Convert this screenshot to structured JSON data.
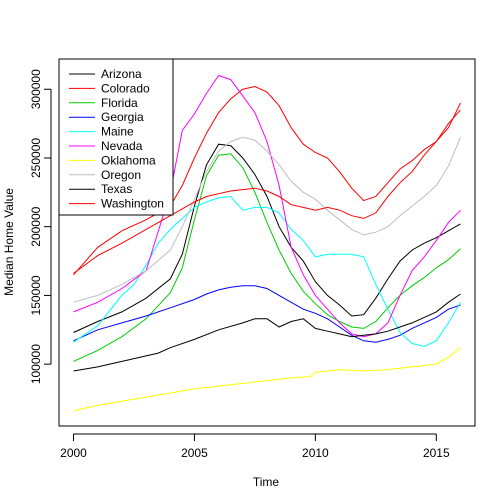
{
  "chart_data": {
    "type": "line",
    "title": "",
    "xlabel": "Time",
    "ylabel": "Median Home Value",
    "xlim": [
      1999.4,
      2016.6
    ],
    "ylim": [
      55000,
      322000
    ],
    "xticks": [
      2000,
      2005,
      2010,
      2015
    ],
    "yticks": [
      100000,
      150000,
      200000,
      250000,
      300000
    ],
    "grid": false,
    "legend_position": "top-left",
    "series": [
      {
        "name": "Arizona",
        "color": "#000000",
        "points": [
          [
            2000,
            123000
          ],
          [
            2001,
            131000
          ],
          [
            2002,
            138000
          ],
          [
            2003,
            148000
          ],
          [
            2004,
            162000
          ],
          [
            2004.5,
            180000
          ],
          [
            2005,
            215000
          ],
          [
            2005.5,
            245000
          ],
          [
            2006,
            260000
          ],
          [
            2006.5,
            259000
          ],
          [
            2007,
            250000
          ],
          [
            2007.5,
            238000
          ],
          [
            2008,
            222000
          ],
          [
            2008.5,
            200000
          ],
          [
            2009,
            185000
          ],
          [
            2009.5,
            175000
          ],
          [
            2010,
            160000
          ],
          [
            2010.5,
            150000
          ],
          [
            2011,
            143000
          ],
          [
            2011.5,
            135000
          ],
          [
            2012,
            136000
          ],
          [
            2012.5,
            148000
          ],
          [
            2013,
            162000
          ],
          [
            2013.5,
            175000
          ],
          [
            2014,
            183000
          ],
          [
            2014.5,
            188000
          ],
          [
            2015,
            192000
          ],
          [
            2015.5,
            197000
          ],
          [
            2016,
            202000
          ]
        ]
      },
      {
        "name": "Colorado",
        "color": "#ff0000",
        "points": [
          [
            2000,
            165000
          ],
          [
            2000.5,
            175000
          ],
          [
            2001,
            185000
          ],
          [
            2002,
            197000
          ],
          [
            2003,
            205000
          ],
          [
            2004,
            215000
          ],
          [
            2004.5,
            230000
          ],
          [
            2005,
            250000
          ],
          [
            2005.5,
            268000
          ],
          [
            2006,
            283000
          ],
          [
            2006.5,
            293000
          ],
          [
            2007,
            300000
          ],
          [
            2007.5,
            302000
          ],
          [
            2008,
            298000
          ],
          [
            2008.5,
            288000
          ],
          [
            2009,
            272000
          ],
          [
            2009.5,
            260000
          ],
          [
            2010,
            254000
          ],
          [
            2010.5,
            250000
          ],
          [
            2011,
            240000
          ],
          [
            2011.5,
            228000
          ],
          [
            2012,
            219000
          ],
          [
            2012.5,
            222000
          ],
          [
            2013,
            232000
          ],
          [
            2013.5,
            242000
          ],
          [
            2014,
            248000
          ],
          [
            2014.5,
            256000
          ],
          [
            2015,
            262000
          ],
          [
            2015.5,
            272000
          ],
          [
            2016,
            290000
          ]
        ]
      },
      {
        "name": "Florida",
        "color": "#00cd00",
        "points": [
          [
            2000,
            102000
          ],
          [
            2001,
            110000
          ],
          [
            2002,
            120000
          ],
          [
            2003,
            133000
          ],
          [
            2004,
            152000
          ],
          [
            2004.5,
            170000
          ],
          [
            2005,
            205000
          ],
          [
            2005.5,
            237000
          ],
          [
            2006,
            252000
          ],
          [
            2006.5,
            253000
          ],
          [
            2007,
            243000
          ],
          [
            2007.5,
            225000
          ],
          [
            2008,
            203000
          ],
          [
            2008.5,
            183000
          ],
          [
            2009,
            166000
          ],
          [
            2009.5,
            153000
          ],
          [
            2010,
            144000
          ],
          [
            2010.5,
            136000
          ],
          [
            2011,
            131000
          ],
          [
            2011.5,
            127000
          ],
          [
            2012,
            126000
          ],
          [
            2012.5,
            131000
          ],
          [
            2013,
            141000
          ],
          [
            2013.5,
            150000
          ],
          [
            2014,
            157000
          ],
          [
            2014.5,
            163000
          ],
          [
            2015,
            170000
          ],
          [
            2015.5,
            176000
          ],
          [
            2016,
            184000
          ]
        ]
      },
      {
        "name": "Georgia",
        "color": "#0000ff",
        "points": [
          [
            2000,
            117000
          ],
          [
            2001,
            125000
          ],
          [
            2002,
            130000
          ],
          [
            2003,
            135000
          ],
          [
            2004,
            141000
          ],
          [
            2005,
            147000
          ],
          [
            2005.5,
            151000
          ],
          [
            2006,
            154000
          ],
          [
            2006.5,
            156000
          ],
          [
            2007,
            157000
          ],
          [
            2007.5,
            157000
          ],
          [
            2008,
            155000
          ],
          [
            2008.5,
            150000
          ],
          [
            2009,
            145000
          ],
          [
            2009.5,
            140000
          ],
          [
            2010,
            137000
          ],
          [
            2010.5,
            133000
          ],
          [
            2011,
            127000
          ],
          [
            2011.5,
            121000
          ],
          [
            2012,
            117000
          ],
          [
            2012.5,
            116000
          ],
          [
            2013,
            118000
          ],
          [
            2013.5,
            121000
          ],
          [
            2014,
            126000
          ],
          [
            2014.5,
            130000
          ],
          [
            2015,
            134000
          ],
          [
            2015.5,
            140000
          ],
          [
            2016,
            143000
          ]
        ]
      },
      {
        "name": "Maine",
        "color": "#00ffff",
        "points": [
          [
            2000,
            116000
          ],
          [
            2001,
            128000
          ],
          [
            2002,
            150000
          ],
          [
            2002.5,
            158000
          ],
          [
            2003,
            172000
          ],
          [
            2003.5,
            188000
          ],
          [
            2004,
            198000
          ],
          [
            2004.5,
            206000
          ],
          [
            2005,
            214000
          ],
          [
            2005.5,
            218000
          ],
          [
            2006,
            221000
          ],
          [
            2006.5,
            222000
          ],
          [
            2007,
            212000
          ],
          [
            2007.5,
            214000
          ],
          [
            2008,
            214000
          ],
          [
            2008.5,
            210000
          ],
          [
            2009,
            198000
          ],
          [
            2009.5,
            190000
          ],
          [
            2010,
            178000
          ],
          [
            2010.5,
            180000
          ],
          [
            2011,
            180000
          ],
          [
            2011.5,
            180000
          ],
          [
            2012,
            178000
          ],
          [
            2012.5,
            158000
          ],
          [
            2013,
            140000
          ],
          [
            2013.5,
            123000
          ],
          [
            2014,
            115000
          ],
          [
            2014.5,
            113000
          ],
          [
            2015,
            117000
          ],
          [
            2015.5,
            130000
          ],
          [
            2016,
            145000
          ]
        ]
      },
      {
        "name": "Nevada",
        "color": "#ff00ff",
        "points": [
          [
            2000,
            138000
          ],
          [
            2001,
            145000
          ],
          [
            2002,
            155000
          ],
          [
            2003,
            168000
          ],
          [
            2004,
            225000
          ],
          [
            2004.5,
            270000
          ],
          [
            2005,
            282000
          ],
          [
            2005.5,
            297000
          ],
          [
            2006,
            310000
          ],
          [
            2006.5,
            307000
          ],
          [
            2007,
            295000
          ],
          [
            2007.5,
            283000
          ],
          [
            2008,
            262000
          ],
          [
            2008.5,
            230000
          ],
          [
            2009,
            185000
          ],
          [
            2009.5,
            165000
          ],
          [
            2010,
            150000
          ],
          [
            2010.5,
            140000
          ],
          [
            2011,
            130000
          ],
          [
            2011.5,
            122000
          ],
          [
            2012,
            120000
          ],
          [
            2012.5,
            122000
          ],
          [
            2013,
            130000
          ],
          [
            2013.5,
            150000
          ],
          [
            2014,
            168000
          ],
          [
            2014.5,
            178000
          ],
          [
            2015,
            190000
          ],
          [
            2015.5,
            203000
          ],
          [
            2016,
            212000
          ]
        ]
      },
      {
        "name": "Oklahoma",
        "color": "#ffff00",
        "points": [
          [
            2000,
            66000
          ],
          [
            2001,
            70000
          ],
          [
            2002,
            73000
          ],
          [
            2003,
            76000
          ],
          [
            2004,
            79000
          ],
          [
            2005,
            82000
          ],
          [
            2006,
            84000
          ],
          [
            2007,
            86000
          ],
          [
            2008,
            88000
          ],
          [
            2009,
            90000
          ],
          [
            2009.8,
            91000
          ],
          [
            2010,
            94000
          ],
          [
            2011,
            96000
          ],
          [
            2012,
            95000
          ],
          [
            2013,
            96000
          ],
          [
            2014,
            98000
          ],
          [
            2015,
            100000
          ],
          [
            2015.5,
            105000
          ],
          [
            2016,
            112000
          ]
        ]
      },
      {
        "name": "Oregon",
        "color": "#bebebe",
        "points": [
          [
            2000,
            145000
          ],
          [
            2001,
            150000
          ],
          [
            2002,
            158000
          ],
          [
            2003,
            168000
          ],
          [
            2004,
            183000
          ],
          [
            2004.5,
            200000
          ],
          [
            2005,
            220000
          ],
          [
            2005.5,
            240000
          ],
          [
            2006,
            255000
          ],
          [
            2006.5,
            262000
          ],
          [
            2007,
            265000
          ],
          [
            2007.5,
            263000
          ],
          [
            2008,
            255000
          ],
          [
            2008.5,
            245000
          ],
          [
            2009,
            233000
          ],
          [
            2009.5,
            225000
          ],
          [
            2010,
            220000
          ],
          [
            2010.5,
            212000
          ],
          [
            2011,
            205000
          ],
          [
            2011.5,
            198000
          ],
          [
            2012,
            194000
          ],
          [
            2012.5,
            196000
          ],
          [
            2013,
            200000
          ],
          [
            2013.5,
            208000
          ],
          [
            2014,
            215000
          ],
          [
            2014.5,
            222000
          ],
          [
            2015,
            230000
          ],
          [
            2015.5,
            244000
          ],
          [
            2016,
            265000
          ]
        ]
      },
      {
        "name": "Texas",
        "color": "#000000",
        "points": [
          [
            2000,
            95000
          ],
          [
            2001,
            98000
          ],
          [
            2002,
            102000
          ],
          [
            2003,
            106000
          ],
          [
            2003.5,
            108000
          ],
          [
            2004,
            112000
          ],
          [
            2005,
            118000
          ],
          [
            2006,
            125000
          ],
          [
            2007,
            130000
          ],
          [
            2007.5,
            133000
          ],
          [
            2008,
            133000
          ],
          [
            2008.5,
            127000
          ],
          [
            2009,
            131000
          ],
          [
            2009.5,
            133000
          ],
          [
            2010,
            126000
          ],
          [
            2010.5,
            124000
          ],
          [
            2011,
            122000
          ],
          [
            2011.5,
            120000
          ],
          [
            2012,
            121000
          ],
          [
            2012.5,
            122000
          ],
          [
            2013,
            124000
          ],
          [
            2013.5,
            127000
          ],
          [
            2014,
            130000
          ],
          [
            2014.5,
            134000
          ],
          [
            2015,
            138000
          ],
          [
            2015.5,
            145000
          ],
          [
            2016,
            151000
          ]
        ]
      },
      {
        "name": "Washington",
        "color": "#ff0000",
        "points": [
          [
            2000,
            166000
          ],
          [
            2001,
            179000
          ],
          [
            2002,
            188000
          ],
          [
            2003,
            198000
          ],
          [
            2004,
            208000
          ],
          [
            2005,
            218000
          ],
          [
            2005.5,
            222000
          ],
          [
            2006,
            224000
          ],
          [
            2006.5,
            226000
          ],
          [
            2007,
            227000
          ],
          [
            2007.5,
            228000
          ],
          [
            2008,
            226000
          ],
          [
            2008.5,
            222000
          ],
          [
            2009,
            216000
          ],
          [
            2009.5,
            214000
          ],
          [
            2010,
            212000
          ],
          [
            2010.5,
            214000
          ],
          [
            2011,
            212000
          ],
          [
            2011.5,
            208000
          ],
          [
            2012,
            206000
          ],
          [
            2012.5,
            210000
          ],
          [
            2013,
            222000
          ],
          [
            2013.5,
            232000
          ],
          [
            2014,
            240000
          ],
          [
            2014.5,
            252000
          ],
          [
            2015,
            262000
          ],
          [
            2015.5,
            275000
          ],
          [
            2016,
            285000
          ]
        ]
      }
    ]
  }
}
